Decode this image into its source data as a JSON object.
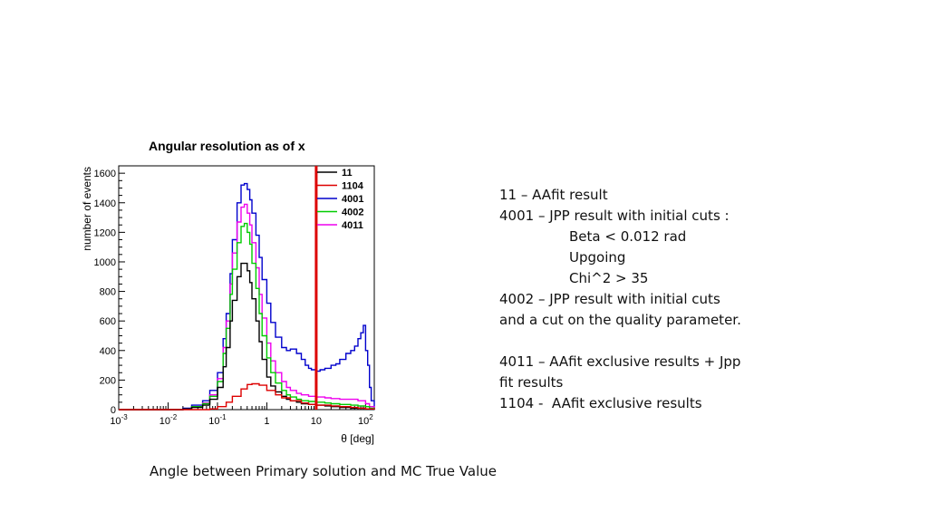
{
  "chart_data": {
    "type": "line",
    "title": "Angular resolution as of x",
    "xlabel": "θ [deg]",
    "ylabel": "number of events",
    "x_scale": "log",
    "xlim": [
      0.001,
      150
    ],
    "ylim": [
      0,
      1650
    ],
    "y_ticks": [
      "0",
      "200",
      "400",
      "600",
      "800",
      "1000",
      "1200",
      "1400",
      "1600"
    ],
    "x_ticks": [
      {
        "base": "10",
        "exp": "-3",
        "value": 0.001
      },
      {
        "base": "10",
        "exp": "-2",
        "value": 0.01
      },
      {
        "base": "10",
        "exp": "-1",
        "value": 0.1
      },
      {
        "base": "1",
        "exp": "",
        "value": 1
      },
      {
        "base": "10",
        "exp": "",
        "value": 10
      },
      {
        "base": "10",
        "exp": "2",
        "value": 100
      }
    ],
    "legend_position": "top-right",
    "vertical_marker": {
      "x": 10,
      "color": "#dd0000"
    },
    "series": [
      {
        "name": "4001",
        "color": "#0000cc",
        "x": [
          0.001,
          0.015,
          0.02,
          0.03,
          0.05,
          0.07,
          0.1,
          0.13,
          0.15,
          0.18,
          0.2,
          0.25,
          0.3,
          0.35,
          0.4,
          0.45,
          0.5,
          0.6,
          0.7,
          0.8,
          1,
          1.2,
          1.5,
          2,
          2.5,
          3,
          4,
          5,
          6,
          7,
          8,
          10,
          12,
          15,
          20,
          25,
          30,
          40,
          50,
          60,
          70,
          80,
          90,
          100,
          110,
          120,
          130,
          150
        ],
        "y": [
          0,
          0,
          10,
          30,
          60,
          130,
          250,
          480,
          650,
          920,
          1150,
          1400,
          1520,
          1530,
          1490,
          1420,
          1330,
          1180,
          1030,
          880,
          720,
          590,
          490,
          420,
          400,
          410,
          380,
          340,
          300,
          280,
          270,
          260,
          270,
          280,
          300,
          310,
          340,
          380,
          400,
          430,
          480,
          520,
          570,
          400,
          300,
          150,
          60,
          0
        ]
      },
      {
        "name": "4011",
        "color": "#ee00ee",
        "x": [
          0.001,
          0.02,
          0.03,
          0.05,
          0.07,
          0.1,
          0.13,
          0.15,
          0.18,
          0.2,
          0.25,
          0.3,
          0.35,
          0.4,
          0.45,
          0.5,
          0.6,
          0.7,
          0.8,
          1,
          1.2,
          1.5,
          2,
          2.5,
          3,
          4,
          5,
          7,
          10,
          15,
          20,
          30,
          50,
          70,
          100,
          120,
          150
        ],
        "y": [
          0,
          5,
          20,
          45,
          100,
          210,
          420,
          600,
          850,
          1060,
          1270,
          1370,
          1390,
          1330,
          1250,
          1130,
          960,
          780,
          620,
          450,
          330,
          250,
          190,
          150,
          130,
          110,
          100,
          90,
          85,
          80,
          75,
          70,
          70,
          60,
          40,
          20,
          0
        ]
      },
      {
        "name": "4002",
        "color": "#00cc00",
        "x": [
          0.001,
          0.02,
          0.03,
          0.05,
          0.07,
          0.1,
          0.13,
          0.15,
          0.18,
          0.2,
          0.25,
          0.3,
          0.35,
          0.4,
          0.45,
          0.5,
          0.6,
          0.7,
          0.8,
          1,
          1.2,
          1.5,
          2,
          2.5,
          3,
          4,
          5,
          7,
          10,
          15,
          20,
          30,
          50,
          70,
          100,
          120,
          150
        ],
        "y": [
          0,
          5,
          20,
          40,
          90,
          190,
          380,
          550,
          780,
          950,
          1130,
          1240,
          1260,
          1200,
          1120,
          990,
          820,
          650,
          500,
          350,
          250,
          180,
          130,
          100,
          85,
          70,
          60,
          55,
          50,
          45,
          40,
          35,
          30,
          25,
          20,
          10,
          0
        ]
      },
      {
        "name": "11",
        "color": "#000000",
        "x": [
          0.001,
          0.02,
          0.03,
          0.05,
          0.07,
          0.1,
          0.13,
          0.15,
          0.18,
          0.2,
          0.25,
          0.3,
          0.35,
          0.4,
          0.45,
          0.5,
          0.6,
          0.7,
          0.8,
          1,
          1.2,
          1.5,
          2,
          2.5,
          3,
          4,
          5,
          7,
          10,
          15,
          20,
          30,
          50,
          70,
          100,
          150
        ],
        "y": [
          0,
          5,
          15,
          30,
          70,
          150,
          290,
          420,
          600,
          740,
          900,
          990,
          990,
          940,
          860,
          750,
          600,
          460,
          340,
          220,
          160,
          120,
          90,
          70,
          60,
          50,
          40,
          35,
          30,
          25,
          20,
          15,
          10,
          10,
          5,
          0
        ]
      },
      {
        "name": "1104",
        "color": "#dd0000",
        "x": [
          0.001,
          0.05,
          0.07,
          0.1,
          0.15,
          0.2,
          0.3,
          0.4,
          0.5,
          0.7,
          1,
          1.5,
          2,
          3,
          5,
          7,
          10,
          15,
          20,
          30,
          50,
          70,
          100,
          150
        ],
        "y": [
          0,
          0,
          5,
          20,
          50,
          90,
          140,
          170,
          175,
          165,
          130,
          100,
          80,
          60,
          45,
          35,
          30,
          30,
          25,
          20,
          15,
          10,
          5,
          0
        ]
      }
    ]
  },
  "notes": {
    "l1": "11 – AAfit result",
    "l2": "4001 – JPP result with initial cuts :",
    "l3": "Beta < 0.012 rad",
    "l4": "Upgoing",
    "l5": "Chi^2 > 35",
    "l6": "4002 – JPP result with initial cuts",
    "l7": "and a cut on the quality parameter.",
    "l8": "4011 – AAfit exclusive results + Jpp",
    "l9": "fit results",
    "l10": "1104 -  AAfit exclusive results"
  },
  "caption": "Angle between Primary solution and MC True Value"
}
